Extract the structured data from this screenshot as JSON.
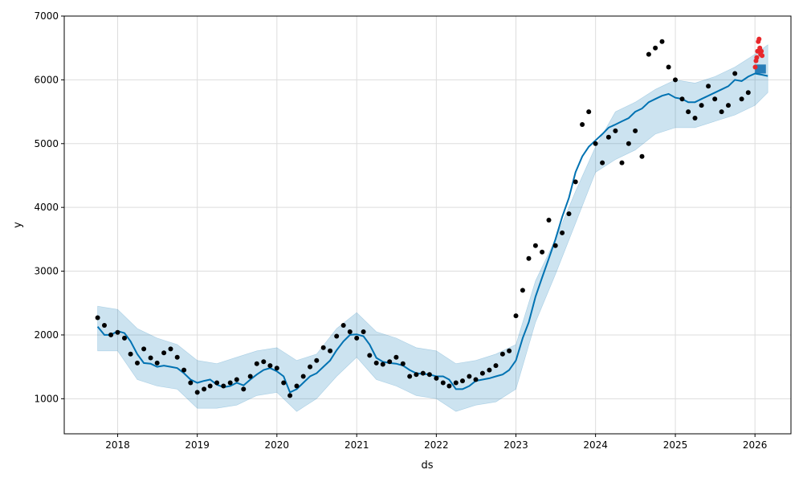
{
  "chart_data": {
    "type": "line",
    "title": "",
    "xlabel": "ds",
    "ylabel": "y",
    "xlim": [
      "2017-05-01",
      "2026-06-15"
    ],
    "ylim": [
      450,
      7000
    ],
    "grid": true,
    "x_ticks": [
      "2018",
      "2019",
      "2020",
      "2021",
      "2022",
      "2023",
      "2024",
      "2025",
      "2026"
    ],
    "y_ticks": [
      1000,
      2000,
      3000,
      4000,
      5000,
      6000,
      7000
    ],
    "colors": {
      "observed": "#000000",
      "forecast": "#0072B2",
      "uncertainty": "#0072B2",
      "future_actual": "#e8282c",
      "future_band": "#1f77b4"
    },
    "series": [
      {
        "name": "",
        "role": "observed",
        "x": [
          "2017-10-01",
          "2017-11-01",
          "2017-12-01",
          "2018-01-01",
          "2018-02-01",
          "2018-03-01",
          "2018-04-01",
          "2018-05-01",
          "2018-06-01",
          "2018-07-01",
          "2018-08-01",
          "2018-09-01",
          "2018-10-01",
          "2018-11-01",
          "2018-12-01",
          "2019-01-01",
          "2019-02-01",
          "2019-03-01",
          "2019-04-01",
          "2019-05-01",
          "2019-06-01",
          "2019-07-01",
          "2019-08-01",
          "2019-09-01",
          "2019-10-01",
          "2019-11-01",
          "2019-12-01",
          "2020-01-01",
          "2020-02-01",
          "2020-03-01",
          "2020-04-01",
          "2020-05-01",
          "2020-06-01",
          "2020-07-01",
          "2020-08-01",
          "2020-09-01",
          "2020-10-01",
          "2020-11-01",
          "2020-12-01",
          "2021-01-01",
          "2021-02-01",
          "2021-03-01",
          "2021-04-01",
          "2021-05-01",
          "2021-06-01",
          "2021-07-01",
          "2021-08-01",
          "2021-09-01",
          "2021-10-01",
          "2021-11-01",
          "2021-12-01",
          "2022-01-01",
          "2022-02-01",
          "2022-03-01",
          "2022-04-01",
          "2022-05-01",
          "2022-06-01",
          "2022-07-01",
          "2022-08-01",
          "2022-09-01",
          "2022-10-01",
          "2022-11-01",
          "2022-12-01",
          "2023-01-01",
          "2023-02-01",
          "2023-03-01",
          "2023-04-01",
          "2023-05-01",
          "2023-06-01",
          "2023-07-01",
          "2023-08-01",
          "2023-09-01",
          "2023-10-01",
          "2023-11-01",
          "2023-12-01",
          "2024-01-01",
          "2024-02-01",
          "2024-03-01",
          "2024-04-01",
          "2024-05-01",
          "2024-06-01",
          "2024-07-01",
          "2024-08-01",
          "2024-09-01",
          "2024-10-01",
          "2024-11-01",
          "2024-12-01",
          "2025-01-01",
          "2025-02-01",
          "2025-03-01",
          "2025-04-01",
          "2025-05-01",
          "2025-06-01",
          "2025-07-01",
          "2025-08-01",
          "2025-09-01",
          "2025-10-01",
          "2025-11-01",
          "2025-12-01"
        ],
        "values": [
          2270,
          2150,
          2000,
          2040,
          1950,
          1700,
          1560,
          1780,
          1640,
          1560,
          1720,
          1780,
          1650,
          1450,
          1250,
          1100,
          1150,
          1200,
          1250,
          1200,
          1250,
          1300,
          1150,
          1350,
          1550,
          1580,
          1520,
          1480,
          1250,
          1050,
          1200,
          1350,
          1500,
          1600,
          1800,
          1750,
          1980,
          2150,
          2050,
          1950,
          2050,
          1680,
          1560,
          1540,
          1580,
          1650,
          1550,
          1350,
          1380,
          1400,
          1380,
          1320,
          1250,
          1200,
          1250,
          1280,
          1350,
          1300,
          1400,
          1450,
          1520,
          1700,
          1750,
          2300,
          2700,
          3200,
          3400,
          3300,
          3800,
          3400,
          3600,
          3900,
          4400,
          5300,
          5500,
          5000,
          4700,
          5100,
          5200,
          4700,
          5000,
          5200,
          4800,
          6400,
          6500,
          6600,
          6200,
          6000,
          5700,
          5500,
          5400,
          5600,
          5900,
          5700,
          5500,
          5600,
          6100,
          5700,
          5800
        ]
      },
      {
        "name": "",
        "role": "forecast",
        "x": [
          "2017-10-01",
          "2017-11-01",
          "2017-12-01",
          "2018-01-01",
          "2018-02-01",
          "2018-03-01",
          "2018-04-01",
          "2018-05-01",
          "2018-06-01",
          "2018-07-01",
          "2018-08-01",
          "2018-09-01",
          "2018-10-01",
          "2018-11-01",
          "2018-12-01",
          "2019-01-01",
          "2019-02-01",
          "2019-03-01",
          "2019-04-01",
          "2019-05-01",
          "2019-06-01",
          "2019-07-01",
          "2019-08-01",
          "2019-09-01",
          "2019-10-01",
          "2019-11-01",
          "2019-12-01",
          "2020-01-01",
          "2020-02-01",
          "2020-03-01",
          "2020-04-01",
          "2020-05-01",
          "2020-06-01",
          "2020-07-01",
          "2020-08-01",
          "2020-09-01",
          "2020-10-01",
          "2020-11-01",
          "2020-12-01",
          "2021-01-01",
          "2021-02-01",
          "2021-03-01",
          "2021-04-01",
          "2021-05-01",
          "2021-06-01",
          "2021-07-01",
          "2021-08-01",
          "2021-09-01",
          "2021-10-01",
          "2021-11-01",
          "2021-12-01",
          "2022-01-01",
          "2022-02-01",
          "2022-03-01",
          "2022-04-01",
          "2022-05-01",
          "2022-06-01",
          "2022-07-01",
          "2022-08-01",
          "2022-09-01",
          "2022-10-01",
          "2022-11-01",
          "2022-12-01",
          "2023-01-01",
          "2023-02-01",
          "2023-03-01",
          "2023-04-01",
          "2023-05-01",
          "2023-06-01",
          "2023-07-01",
          "2023-08-01",
          "2023-09-01",
          "2023-10-01",
          "2023-11-01",
          "2023-12-01",
          "2024-01-01",
          "2024-02-01",
          "2024-03-01",
          "2024-04-01",
          "2024-05-01",
          "2024-06-01",
          "2024-07-01",
          "2024-08-01",
          "2024-09-01",
          "2024-10-01",
          "2024-11-01",
          "2024-12-01",
          "2025-01-01",
          "2025-02-01",
          "2025-03-01",
          "2025-04-01",
          "2025-05-01",
          "2025-06-01",
          "2025-07-01",
          "2025-08-01",
          "2025-09-01",
          "2025-10-01",
          "2025-11-01",
          "2025-12-01",
          "2026-01-01",
          "2026-02-01",
          "2026-03-01"
        ],
        "values": [
          2130,
          2000,
          2000,
          2060,
          2030,
          1900,
          1700,
          1560,
          1550,
          1500,
          1520,
          1500,
          1480,
          1400,
          1300,
          1250,
          1280,
          1300,
          1220,
          1180,
          1200,
          1250,
          1210,
          1300,
          1380,
          1450,
          1480,
          1430,
          1350,
          1100,
          1150,
          1250,
          1350,
          1400,
          1500,
          1600,
          1760,
          1900,
          2000,
          2010,
          1980,
          1850,
          1640,
          1580,
          1560,
          1550,
          1520,
          1450,
          1400,
          1390,
          1380,
          1350,
          1350,
          1300,
          1150,
          1150,
          1200,
          1280,
          1300,
          1320,
          1350,
          1380,
          1450,
          1600,
          1950,
          2200,
          2600,
          2900,
          3200,
          3500,
          3850,
          4150,
          4550,
          4800,
          4950,
          5050,
          5150,
          5250,
          5300,
          5350,
          5400,
          5500,
          5550,
          5650,
          5700,
          5750,
          5780,
          5720,
          5700,
          5650,
          5650,
          5700,
          5750,
          5800,
          5850,
          5900,
          6000,
          5980,
          6050,
          6100,
          6080,
          6060
        ]
      },
      {
        "name": "",
        "role": "future_actual",
        "x": [
          "2026-01-02",
          "2026-01-06",
          "2026-01-09",
          "2026-01-13",
          "2026-01-16",
          "2026-01-20",
          "2026-01-23",
          "2026-01-27",
          "2026-01-30",
          "2026-02-03"
        ],
        "values": [
          6200,
          6300,
          6350,
          6450,
          6600,
          6640,
          6500,
          6400,
          6450,
          6380
        ]
      }
    ],
    "uncertainty_band": {
      "x": [
        "2017-10-01",
        "2018-01-01",
        "2018-04-01",
        "2018-07-01",
        "2018-10-01",
        "2019-01-01",
        "2019-04-01",
        "2019-07-01",
        "2019-10-01",
        "2020-01-01",
        "2020-04-01",
        "2020-07-01",
        "2020-10-01",
        "2021-01-01",
        "2021-04-01",
        "2021-07-01",
        "2021-10-01",
        "2022-01-01",
        "2022-04-01",
        "2022-07-01",
        "2022-10-01",
        "2023-01-01",
        "2023-04-01",
        "2023-07-01",
        "2023-10-01",
        "2024-01-01",
        "2024-04-01",
        "2024-07-01",
        "2024-10-01",
        "2025-01-01",
        "2025-04-01",
        "2025-07-01",
        "2025-10-01",
        "2026-01-01",
        "2026-03-01"
      ],
      "lower": [
        1750,
        1750,
        1300,
        1200,
        1150,
        850,
        850,
        900,
        1050,
        1100,
        800,
        1000,
        1350,
        1650,
        1300,
        1200,
        1050,
        1000,
        800,
        900,
        950,
        1150,
        2200,
        2950,
        3750,
        4550,
        4750,
        4900,
        5150,
        5250,
        5250,
        5350,
        5450,
        5600,
        5800
      ],
      "upper": [
        2450,
        2400,
        2100,
        1950,
        1850,
        1600,
        1550,
        1650,
        1750,
        1800,
        1600,
        1700,
        2100,
        2350,
        2050,
        1950,
        1800,
        1750,
        1550,
        1600,
        1700,
        1850,
        2850,
        3500,
        4250,
        4950,
        5500,
        5650,
        5850,
        6000,
        5950,
        6050,
        6200,
        6400,
        6550
      ]
    },
    "future_band": {
      "x": [
        "2026-01-01",
        "2026-02-20"
      ],
      "lower": [
        6100,
        6100
      ],
      "upper": [
        6240,
        6240
      ]
    }
  }
}
